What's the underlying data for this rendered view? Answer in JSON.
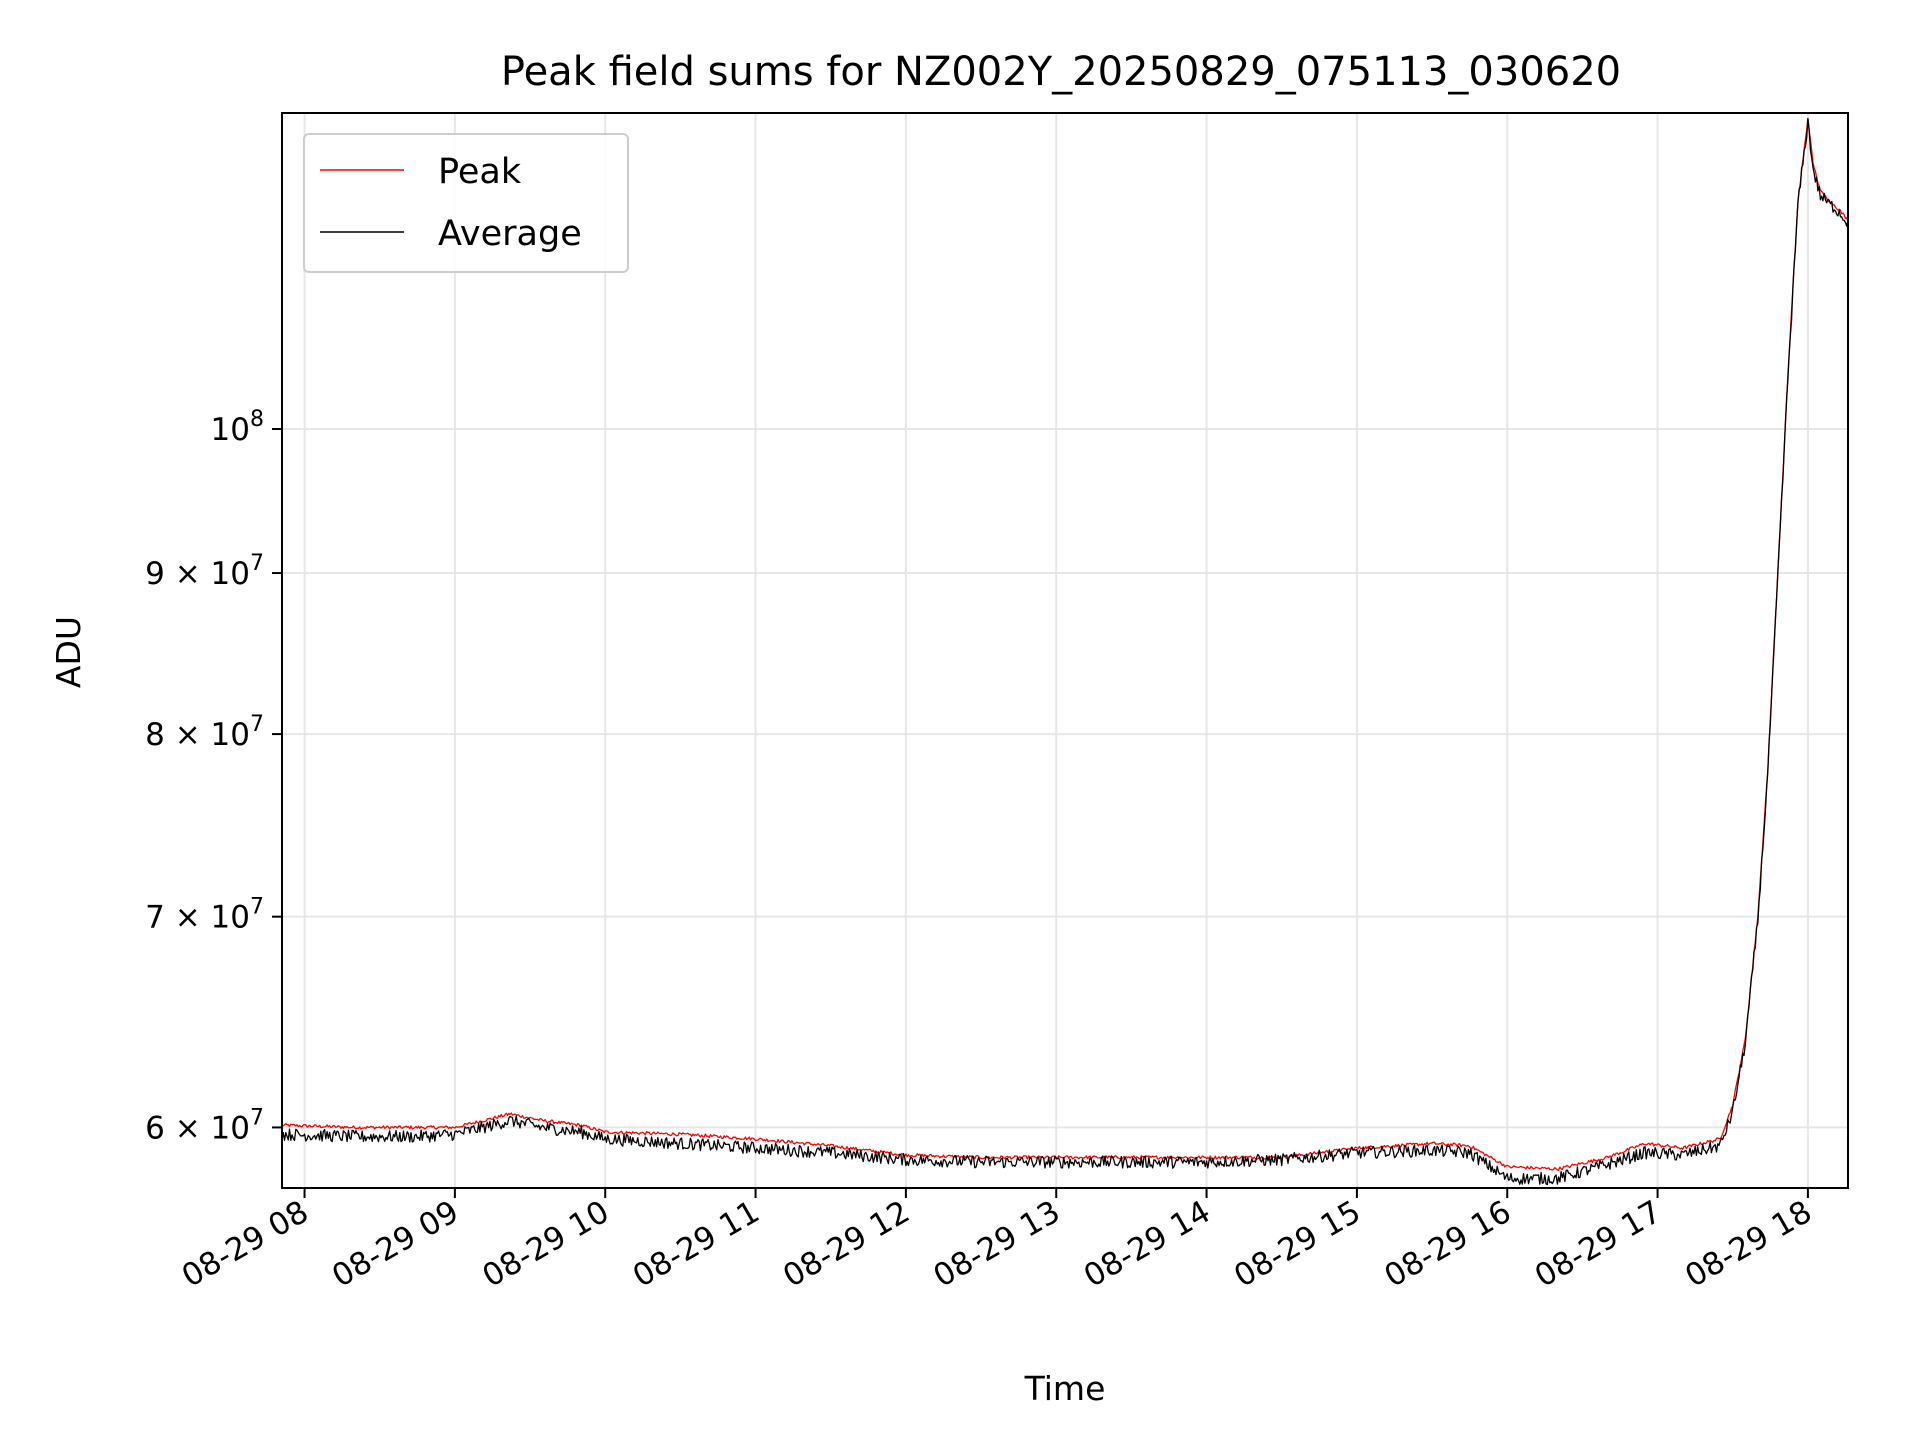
{
  "chart_data": {
    "type": "line",
    "title": "Peak field sums for NZ002Y_20250829_075113_030620",
    "xlabel": "Time",
    "ylabel": "ADU",
    "x_tick_labels": [
      "08-29 08",
      "08-29 09",
      "08-29 10",
      "08-29 11",
      "08-29 12",
      "08-29 13",
      "08-29 14",
      "08-29 15",
      "08-29 16",
      "08-29 17",
      "08-29 18"
    ],
    "y_scale": "log",
    "y_ticks": [
      {
        "value": 60000000,
        "mant": "6",
        "exp": "7"
      },
      {
        "value": 70000000,
        "mant": "7",
        "exp": "7"
      },
      {
        "value": 80000000,
        "mant": "8",
        "exp": "7"
      },
      {
        "value": 90000000,
        "mant": "9",
        "exp": "7"
      },
      {
        "value": 100000000,
        "mant": "",
        "exp": "8"
      }
    ],
    "xlim": [
      "2025-08-29 07:51",
      "2025-08-29 18:16"
    ],
    "ylim": [
      57400000,
      126000000
    ],
    "grid": true,
    "legend_position": "upper-left",
    "series": [
      {
        "name": "Peak",
        "color": "#ff0000",
        "x": [
          "2025-08-29 07:51",
          "2025-08-29 08:20",
          "2025-08-29 08:45",
          "2025-08-29 09:00",
          "2025-08-29 09:15",
          "2025-08-29 09:22",
          "2025-08-29 09:35",
          "2025-08-29 09:50",
          "2025-08-29 10:00",
          "2025-08-29 10:30",
          "2025-08-29 11:00",
          "2025-08-29 11:30",
          "2025-08-29 12:00",
          "2025-08-29 12:30",
          "2025-08-29 13:00",
          "2025-08-29 13:30",
          "2025-08-29 14:00",
          "2025-08-29 14:30",
          "2025-08-29 15:00",
          "2025-08-29 15:30",
          "2025-08-29 15:45",
          "2025-08-29 16:00",
          "2025-08-29 16:20",
          "2025-08-29 16:40",
          "2025-08-29 16:55",
          "2025-08-29 17:10",
          "2025-08-29 17:25",
          "2025-08-29 17:30",
          "2025-08-29 17:35",
          "2025-08-29 17:40",
          "2025-08-29 17:44",
          "2025-08-29 17:48",
          "2025-08-29 17:52",
          "2025-08-29 17:56",
          "2025-08-29 18:00",
          "2025-08-29 18:02",
          "2025-08-29 18:05",
          "2025-08-29 18:08",
          "2025-08-29 18:12",
          "2025-08-29 18:16"
        ],
        "y": [
          60100000,
          60000000,
          60000000,
          60000000,
          60400000,
          60600000,
          60300000,
          60100000,
          59800000,
          59700000,
          59500000,
          59200000,
          58800000,
          58700000,
          58700000,
          58700000,
          58700000,
          58700000,
          59100000,
          59300000,
          59200000,
          58300000,
          58200000,
          58700000,
          59300000,
          59100000,
          59500000,
          61000000,
          64000000,
          70000000,
          78000000,
          90000000,
          104000000,
          118000000,
          125500000,
          121500000,
          119000000,
          118300000,
          117500000,
          116500000
        ]
      },
      {
        "name": "Average",
        "color": "#000000",
        "x": [
          "2025-08-29 07:51",
          "2025-08-29 08:20",
          "2025-08-29 08:45",
          "2025-08-29 09:00",
          "2025-08-29 09:15",
          "2025-08-29 09:22",
          "2025-08-29 09:35",
          "2025-08-29 09:50",
          "2025-08-29 10:00",
          "2025-08-29 10:30",
          "2025-08-29 11:00",
          "2025-08-29 11:30",
          "2025-08-29 12:00",
          "2025-08-29 12:30",
          "2025-08-29 13:00",
          "2025-08-29 13:30",
          "2025-08-29 14:00",
          "2025-08-29 14:30",
          "2025-08-29 15:00",
          "2025-08-29 15:30",
          "2025-08-29 15:45",
          "2025-08-29 16:00",
          "2025-08-29 16:20",
          "2025-08-29 16:40",
          "2025-08-29 16:55",
          "2025-08-29 17:10",
          "2025-08-29 17:25",
          "2025-08-29 17:30",
          "2025-08-29 17:35",
          "2025-08-29 17:40",
          "2025-08-29 17:44",
          "2025-08-29 17:48",
          "2025-08-29 17:52",
          "2025-08-29 17:56",
          "2025-08-29 18:00",
          "2025-08-29 18:02",
          "2025-08-29 18:05",
          "2025-08-29 18:08",
          "2025-08-29 18:12",
          "2025-08-29 18:16"
        ],
        "y": [
          59700000,
          59600000,
          59600000,
          59700000,
          60100000,
          60300000,
          60000000,
          59800000,
          59500000,
          59300000,
          59100000,
          58900000,
          58600000,
          58500000,
          58500000,
          58500000,
          58500000,
          58600000,
          58900000,
          59000000,
          58900000,
          57800000,
          57800000,
          58400000,
          58900000,
          58800000,
          59200000,
          60700000,
          63800000,
          69800000,
          77800000,
          89800000,
          103800000,
          117800000,
          125200000,
          121000000,
          118600000,
          118000000,
          117300000,
          116300000
        ]
      }
    ]
  }
}
